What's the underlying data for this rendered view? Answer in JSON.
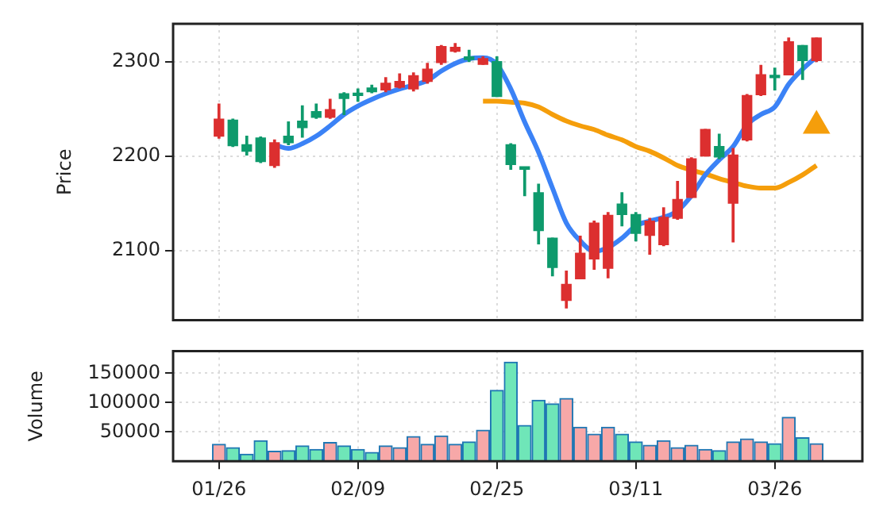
{
  "chart_data": [
    {
      "type": "candlestick",
      "ylabel": "Price",
      "categories": [
        null,
        null,
        null,
        null,
        null,
        null,
        null,
        null,
        null,
        null,
        null,
        null,
        null,
        null,
        null,
        null,
        null,
        null,
        null,
        null,
        null,
        null,
        null,
        null,
        null,
        null,
        null,
        null,
        null,
        null,
        null,
        null,
        null,
        null,
        null,
        null,
        null,
        null,
        null,
        null,
        null,
        null,
        null,
        null
      ],
      "ohlc": [
        [
          2221,
          2255,
          2219,
          2239
        ],
        [
          2238,
          2239,
          2210,
          2211
        ],
        [
          2212,
          2221,
          2201,
          2205
        ],
        [
          2219,
          2220,
          2193,
          2194
        ],
        [
          2190,
          2217,
          2188,
          2214
        ],
        [
          2221,
          2236,
          2212,
          2214
        ],
        [
          2237,
          2253,
          2220,
          2230
        ],
        [
          2247,
          2255,
          2240,
          2241
        ],
        [
          2241,
          2260,
          2240,
          2249
        ],
        [
          2266,
          2267,
          2244,
          2261
        ],
        [
          2266,
          2271,
          2258,
          2264
        ],
        [
          2272,
          2275,
          2267,
          2268
        ],
        [
          2270,
          2283,
          2268,
          2277
        ],
        [
          2273,
          2287,
          2272,
          2279
        ],
        [
          2271,
          2288,
          2269,
          2285
        ],
        [
          2279,
          2298,
          2277,
          2292
        ],
        [
          2299,
          2317,
          2297,
          2316
        ],
        [
          2311,
          2319,
          2310,
          2315
        ],
        [
          2305,
          2312,
          2300,
          2302
        ],
        [
          2297,
          2305,
          2297,
          2303
        ],
        [
          2300,
          2305,
          2263,
          2263
        ],
        [
          2212,
          2213,
          2186,
          2191
        ],
        [
          2188,
          2188,
          2158,
          2186
        ],
        [
          2161,
          2170,
          2107,
          2121
        ],
        [
          2113,
          2113,
          2073,
          2082
        ],
        [
          2047,
          2078,
          2039,
          2064
        ],
        [
          2070,
          2115,
          2070,
          2097
        ],
        [
          2091,
          2131,
          2080,
          2129
        ],
        [
          2081,
          2140,
          2071,
          2137
        ],
        [
          2149,
          2161,
          2126,
          2138
        ],
        [
          2138,
          2140,
          2110,
          2118
        ],
        [
          2116,
          2134,
          2096,
          2131
        ],
        [
          2106,
          2145,
          2105,
          2135
        ],
        [
          2134,
          2173,
          2133,
          2154
        ],
        [
          2156,
          2198,
          2156,
          2197
        ],
        [
          2200,
          2228,
          2200,
          2228
        ],
        [
          2210,
          2223,
          2197,
          2199
        ],
        [
          2150,
          2208,
          2109,
          2201
        ],
        [
          2217,
          2265,
          2216,
          2264
        ],
        [
          2265,
          2296,
          2264,
          2286
        ],
        [
          2285,
          2293,
          2270,
          2283
        ],
        [
          2286,
          2325,
          2286,
          2321
        ],
        [
          2317,
          2317,
          2281,
          2301
        ],
        [
          2301,
          2325,
          2300,
          2325
        ]
      ],
      "colors": [
        "#dc2f2f",
        "#0e9a6c",
        "#0e9a6c",
        "#0e9a6c",
        "#dc2f2f",
        "#0e9a6c",
        "#0e9a6c",
        "#0e9a6c",
        "#dc2f2f",
        "#0e9a6c",
        "#0e9a6c",
        "#0e9a6c",
        "#dc2f2f",
        "#dc2f2f",
        "#dc2f2f",
        "#dc2f2f",
        "#dc2f2f",
        "#dc2f2f",
        "#0e9a6c",
        "#dc2f2f",
        "#0e9a6c",
        "#0e9a6c",
        "#0e9a6c",
        "#0e9a6c",
        "#0e9a6c",
        "#dc2f2f",
        "#dc2f2f",
        "#dc2f2f",
        "#dc2f2f",
        "#0e9a6c",
        "#0e9a6c",
        "#dc2f2f",
        "#dc2f2f",
        "#dc2f2f",
        "#dc2f2f",
        "#dc2f2f",
        "#0e9a6c",
        "#dc2f2f",
        "#dc2f2f",
        "#dc2f2f",
        "#0e9a6c",
        "#dc2f2f",
        "#0e9a6c",
        "#dc2f2f"
      ],
      "series": [
        {
          "type": "line",
          "color": "#3b82f6",
          "values": [
            null,
            null,
            null,
            null,
            2212,
            2208,
            2213,
            2221,
            2232,
            2244,
            2253,
            2260,
            2266,
            2271,
            2275,
            2280,
            2290,
            2298,
            2303,
            2304,
            2297,
            2271,
            2236,
            2204,
            2166,
            2129,
            2110,
            2099,
            2103,
            2113,
            2126,
            2131,
            2135,
            2142,
            2158,
            2180,
            2196,
            2210,
            2233,
            2244,
            2252,
            2276,
            2292,
            2305
          ]
        },
        {
          "type": "line",
          "color": "#f59e0b",
          "values": [
            null,
            null,
            null,
            null,
            null,
            null,
            null,
            null,
            null,
            null,
            null,
            null,
            null,
            null,
            null,
            null,
            null,
            null,
            null,
            2258,
            2258,
            2257,
            2256,
            2252,
            2244,
            2237,
            2232,
            2228,
            2222,
            2217,
            2210,
            2205,
            2198,
            2190,
            2185,
            2181,
            2176,
            2172,
            2168,
            2166,
            2166,
            2172,
            2180,
            2190
          ]
        },
        {
          "type": "scatter",
          "color": "#f59e0b",
          "marker": "triangle",
          "values": [
            null,
            null,
            null,
            null,
            null,
            null,
            null,
            null,
            null,
            null,
            null,
            null,
            null,
            null,
            null,
            null,
            null,
            null,
            null,
            null,
            null,
            null,
            null,
            null,
            null,
            null,
            null,
            null,
            null,
            null,
            null,
            null,
            null,
            null,
            null,
            null,
            null,
            null,
            null,
            null,
            null,
            null,
            null,
            2232
          ]
        }
      ],
      "ylim": [
        2026,
        2340
      ],
      "yticks": [
        2100,
        2200,
        2300
      ],
      "grid": true,
      "tick_labels": "y"
    },
    {
      "type": "bar",
      "ylabel": "Volume",
      "categories": [
        "01/26",
        null,
        null,
        null,
        null,
        null,
        null,
        null,
        null,
        null,
        "02/09",
        null,
        null,
        null,
        null,
        null,
        null,
        null,
        null,
        null,
        "02/25",
        null,
        null,
        null,
        null,
        null,
        null,
        null,
        null,
        null,
        "03/11",
        null,
        null,
        null,
        null,
        null,
        null,
        null,
        null,
        null,
        "03/26",
        null,
        null,
        null
      ],
      "values": [
        29000,
        23000,
        12000,
        35000,
        17000,
        18000,
        26000,
        20000,
        32000,
        26000,
        20000,
        15000,
        26000,
        23000,
        42000,
        29000,
        43000,
        29000,
        33000,
        53000,
        121000,
        169000,
        61000,
        104000,
        98000,
        107000,
        58000,
        46000,
        58000,
        46000,
        33000,
        27000,
        35000,
        23000,
        27000,
        20000,
        18000,
        33000,
        38000,
        33000,
        30000,
        75000,
        40000,
        30000
      ],
      "colors": [
        "#f7a8a8",
        "#6fe6b8",
        "#6fe6b8",
        "#6fe6b8",
        "#f7a8a8",
        "#6fe6b8",
        "#6fe6b8",
        "#6fe6b8",
        "#f7a8a8",
        "#6fe6b8",
        "#6fe6b8",
        "#6fe6b8",
        "#f7a8a8",
        "#f7a8a8",
        "#f7a8a8",
        "#f7a8a8",
        "#f7a8a8",
        "#f7a8a8",
        "#6fe6b8",
        "#f7a8a8",
        "#6fe6b8",
        "#6fe6b8",
        "#6fe6b8",
        "#6fe6b8",
        "#6fe6b8",
        "#f7a8a8",
        "#f7a8a8",
        "#f7a8a8",
        "#f7a8a8",
        "#6fe6b8",
        "#6fe6b8",
        "#f7a8a8",
        "#f7a8a8",
        "#f7a8a8",
        "#f7a8a8",
        "#f7a8a8",
        "#6fe6b8",
        "#f7a8a8",
        "#f7a8a8",
        "#f7a8a8",
        "#6fe6b8",
        "#f7a8a8",
        "#6fe6b8",
        "#f7a8a8"
      ],
      "ylim": [
        0,
        188000
      ],
      "yticks": [
        50000,
        100000,
        150000
      ],
      "grid": true
    }
  ]
}
